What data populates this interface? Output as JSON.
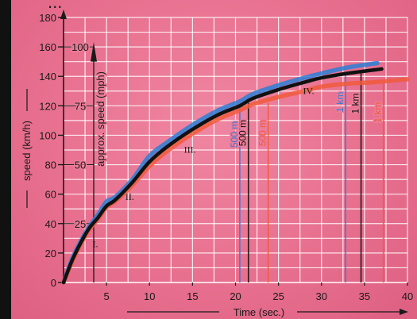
{
  "chart_data": {
    "type": "line",
    "title": "",
    "xlabel": "Time (sec.)",
    "ylabel": "speed (km/h)",
    "secondary_ylabel": "approx. speed (mph)",
    "xlim": [
      0,
      40
    ],
    "ylim": [
      0,
      180
    ],
    "x_ticks": [
      5,
      10,
      15,
      20,
      25,
      30,
      35,
      40
    ],
    "y_ticks": [
      0,
      20,
      40,
      60,
      80,
      100,
      120,
      140,
      160,
      180
    ],
    "mph_ticks": [
      {
        "label": "25",
        "kmh": 40
      },
      {
        "label": "50",
        "kmh": 80
      },
      {
        "label": "75",
        "kmh": 120
      },
      {
        "label": "100",
        "kmh": 160
      }
    ],
    "grid": true,
    "series": [
      {
        "color": "#2a7fd6",
        "x": [
          0,
          1,
          2,
          3,
          4,
          5,
          6,
          8,
          10,
          12,
          15,
          18,
          20.5,
          22,
          25,
          28,
          30,
          33,
          36.5
        ],
        "y": [
          0,
          16,
          28,
          38,
          46,
          55,
          58,
          70,
          86,
          95,
          107,
          117,
          123,
          128,
          134,
          139,
          142,
          146,
          149
        ]
      },
      {
        "color": "#f05a3c",
        "x": [
          0,
          1,
          2,
          3,
          4,
          5,
          6,
          8,
          10,
          12,
          15,
          18,
          20.5,
          22,
          25,
          28,
          30,
          33,
          36,
          40
        ],
        "y": [
          0,
          14,
          26,
          36,
          43,
          51,
          55,
          66,
          79,
          89,
          101,
          111,
          117,
          121,
          126,
          130,
          133,
          135,
          136,
          138
        ]
      },
      {
        "color": "#111111",
        "x": [
          0,
          1,
          2,
          3,
          4,
          5,
          6,
          8,
          10,
          12,
          15,
          18,
          20.5,
          22,
          25,
          28,
          30,
          33,
          37
        ],
        "y": [
          0,
          15,
          27,
          37,
          44,
          52,
          56,
          68,
          82,
          92,
          104,
          114,
          120,
          125,
          131,
          136,
          139,
          142,
          145
        ]
      }
    ],
    "gear_labels": [
      {
        "text": "I.",
        "x": 3.7,
        "y": 24
      },
      {
        "text": "II.",
        "x": 7.7,
        "y": 56
      },
      {
        "text": "III.",
        "x": 14.7,
        "y": 88
      },
      {
        "text": "IV.",
        "x": 28.5,
        "y": 128
      }
    ],
    "distance_markers": [
      {
        "text": "500 m",
        "x": 20.5,
        "y_top": 121,
        "color": "#3a78d8"
      },
      {
        "text": "500 m",
        "x": 21.5,
        "y_top": 122,
        "color": "#111111"
      },
      {
        "text": "500 m",
        "x": 23.8,
        "y_top": 122,
        "color": "#f05a3c"
      },
      {
        "text": "1 km",
        "x": 32.8,
        "y_top": 143,
        "color": "#3a78d8"
      },
      {
        "text": "1 km",
        "x": 34.6,
        "y_top": 142,
        "color": "#111111"
      },
      {
        "text": "1 km",
        "x": 37.2,
        "y_top": 136,
        "color": "#f05a3c"
      }
    ]
  },
  "header_text": "...",
  "colors": {
    "background": "#e8708f",
    "grid": "#ffffff",
    "ink": "#1a1a1a"
  }
}
